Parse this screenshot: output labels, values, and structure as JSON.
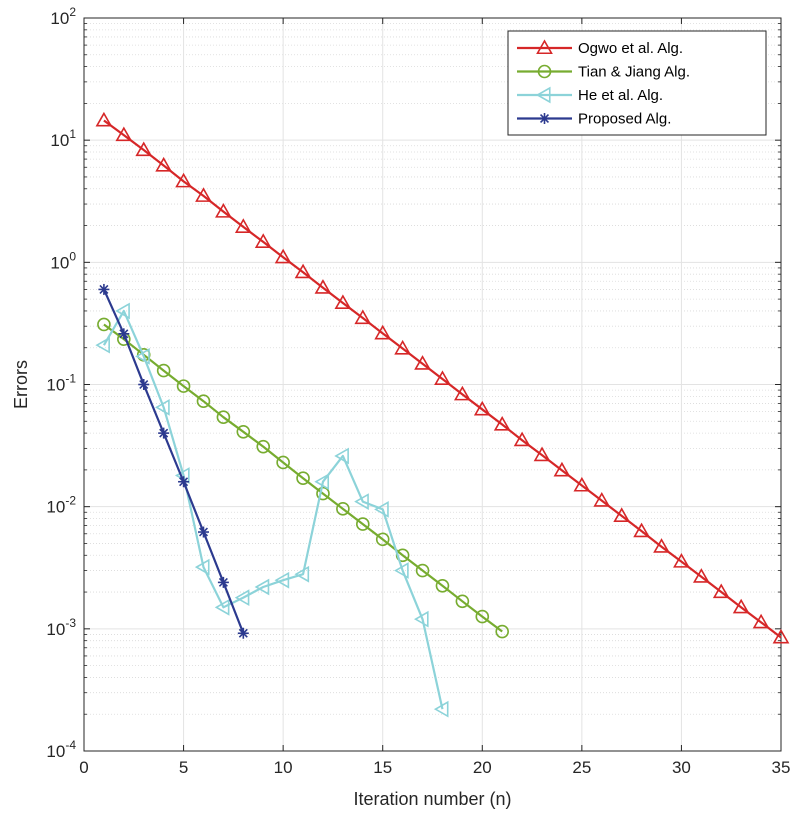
{
  "chart_data": {
    "type": "line",
    "xlabel": "Iteration number (n)",
    "ylabel": "Errors",
    "xlim": [
      0,
      35
    ],
    "ylim": [
      0.0001,
      100
    ],
    "yscale": "log",
    "grid": true,
    "minor_grid": true,
    "legend_position": "top-right",
    "x_ticks": [
      0,
      5,
      10,
      15,
      20,
      25,
      30,
      35
    ],
    "y_ticks": [
      {
        "value": 0.0001,
        "base": "10",
        "exp": "-4"
      },
      {
        "value": 0.001,
        "base": "10",
        "exp": "-3"
      },
      {
        "value": 0.01,
        "base": "10",
        "exp": "-2"
      },
      {
        "value": 0.1,
        "base": "10",
        "exp": "-1"
      },
      {
        "value": 1,
        "base": "10",
        "exp": "0"
      },
      {
        "value": 10,
        "base": "10",
        "exp": "1"
      },
      {
        "value": 100,
        "base": "10",
        "exp": "2"
      }
    ],
    "series": [
      {
        "name": "Ogwo et al. Alg.",
        "color": "#d62728",
        "marker": "triangle-up",
        "x": [
          1,
          2,
          3,
          4,
          5,
          6,
          7,
          8,
          9,
          10,
          11,
          12,
          13,
          14,
          15,
          16,
          17,
          18,
          19,
          20,
          21,
          22,
          23,
          24,
          25,
          26,
          27,
          28,
          29,
          30,
          31,
          32,
          33,
          34,
          35
        ],
        "y": [
          14.5,
          11.0,
          8.3,
          6.2,
          4.6,
          3.5,
          2.6,
          1.95,
          1.47,
          1.1,
          0.83,
          0.62,
          0.465,
          0.35,
          0.262,
          0.197,
          0.148,
          0.111,
          0.083,
          0.0625,
          0.047,
          0.035,
          0.0264,
          0.0198,
          0.0149,
          0.0112,
          0.0084,
          0.0063,
          0.0047,
          0.00355,
          0.00267,
          0.002,
          0.0015,
          0.00113,
          0.00085
        ]
      },
      {
        "name": "Tian & Jiang Alg.",
        "color": "#77ac30",
        "marker": "circle",
        "x": [
          1,
          2,
          3,
          4,
          5,
          6,
          7,
          8,
          9,
          10,
          11,
          12,
          13,
          14,
          15,
          16,
          17,
          18,
          19,
          20,
          21
        ],
        "y": [
          0.31,
          0.235,
          0.175,
          0.13,
          0.097,
          0.073,
          0.054,
          0.041,
          0.031,
          0.023,
          0.0171,
          0.0128,
          0.0096,
          0.0072,
          0.0054,
          0.004,
          0.003,
          0.00225,
          0.00168,
          0.00126,
          0.00095
        ]
      },
      {
        "name": "He et al. Alg.",
        "color": "#8cd3d9",
        "marker": "triangle-left",
        "x": [
          1,
          2,
          3,
          4,
          5,
          6,
          7,
          8,
          9,
          10,
          11,
          12,
          13,
          14,
          15,
          16,
          17,
          18
        ],
        "y": [
          0.21,
          0.4,
          0.17,
          0.065,
          0.018,
          0.0032,
          0.0015,
          0.0018,
          0.0022,
          0.0025,
          0.0028,
          0.016,
          0.026,
          0.011,
          0.0095,
          0.003,
          0.0012,
          0.00022
        ]
      },
      {
        "name": "Proposed Alg.",
        "color": "#2c3a8f",
        "marker": "asterisk",
        "x": [
          1,
          2,
          3,
          4,
          5,
          6,
          7,
          8
        ],
        "y": [
          0.6,
          0.26,
          0.1,
          0.04,
          0.016,
          0.0062,
          0.0024,
          0.00092
        ]
      }
    ]
  }
}
